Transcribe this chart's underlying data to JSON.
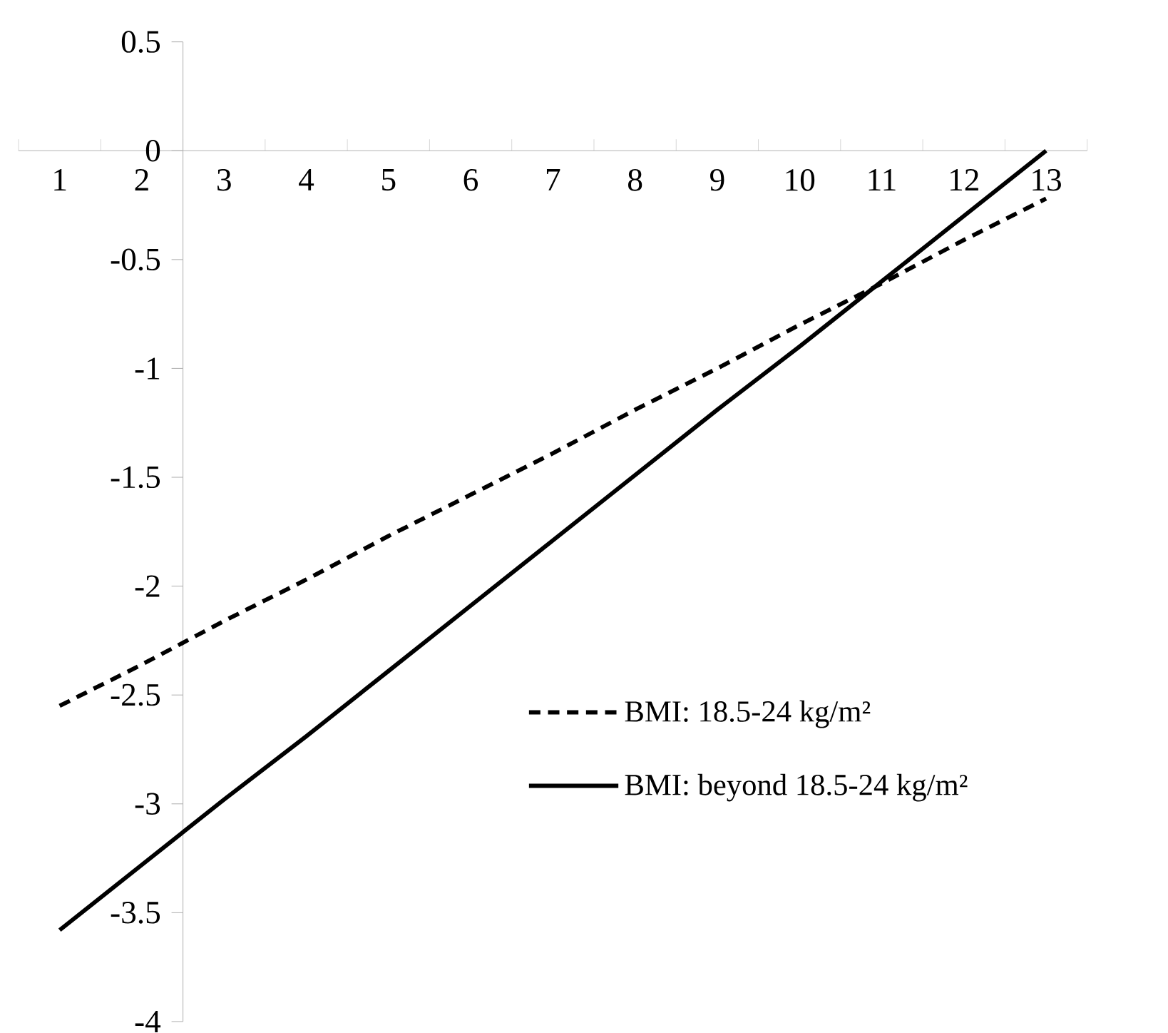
{
  "chart_data": {
    "type": "line",
    "categories": [
      "1",
      "2",
      "3",
      "4",
      "5",
      "6",
      "7",
      "8",
      "9",
      "10",
      "11",
      "12",
      "13"
    ],
    "ylim": [
      -4,
      0.5
    ],
    "yticks": [
      0.5,
      0,
      -0.5,
      -1,
      -1.5,
      -2,
      -2.5,
      -3,
      -3.5,
      -4
    ],
    "legend": "bottom right",
    "series": [
      {
        "name": "BMI: 18.5-24 kg/m²",
        "color": "#000000",
        "line_style": "dashed",
        "values": [
          -2.55,
          -2.36,
          -2.16,
          -1.97,
          -1.77,
          -1.58,
          -1.39,
          -1.19,
          -1.0,
          -0.8,
          -0.61,
          -0.41,
          -0.22
        ]
      },
      {
        "name": "BMI: beyond 18.5-24 kg/m²",
        "color": "#000000",
        "line_style": "solid",
        "values": [
          -3.58,
          -3.28,
          -2.98,
          -2.69,
          -2.39,
          -2.09,
          -1.79,
          -1.49,
          -1.19,
          -0.9,
          -0.6,
          -0.3,
          0
        ]
      }
    ]
  }
}
